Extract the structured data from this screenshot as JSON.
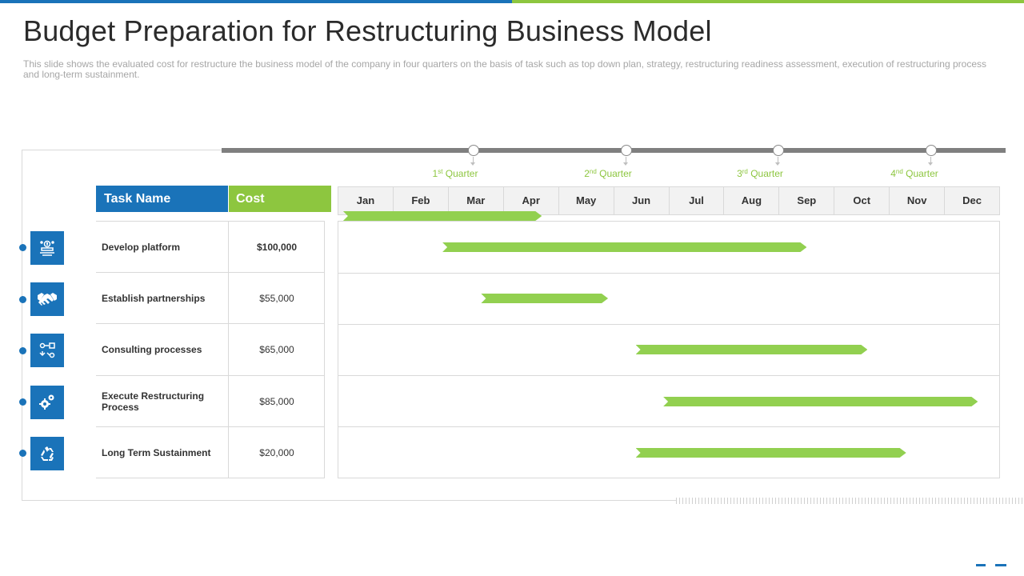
{
  "title": "Budget Preparation for Restructuring Business Model",
  "subtitle": "This slide shows the evaluated cost for restructure the business model of the company in four quarters on the basis of task such as top down plan, strategy, restructuring readiness assessment, execution of restructuring process and long-term sustainment.",
  "quarters": [
    {
      "num": "1",
      "sup": "st",
      "label": " Quarter"
    },
    {
      "num": "2",
      "sup": "nd",
      "label": " Quarter"
    },
    {
      "num": "3",
      "sup": "rd",
      "label": " Quarter"
    },
    {
      "num": "4",
      "sup": "nd",
      "label": " Quarter"
    }
  ],
  "table": {
    "header_task": "Task Name",
    "header_cost": "Cost",
    "rows": [
      {
        "task": "Develop platform",
        "cost": "$100,000",
        "icon": "platform-icon"
      },
      {
        "task": "Establish partnerships",
        "cost": "$55,000",
        "icon": "handshake-icon"
      },
      {
        "task": "Consulting processes",
        "cost": "$65,000",
        "icon": "process-icon"
      },
      {
        "task": "Execute Restructuring Process",
        "cost": "$85,000",
        "icon": "gears-icon"
      },
      {
        "task": "Long Term Sustainment",
        "cost": "$20,000",
        "icon": "recycle-icon"
      }
    ]
  },
  "months": [
    "Jan",
    "Feb",
    "Mar",
    "Apr",
    "May",
    "Jun",
    "Jul",
    "Aug",
    "Sep",
    "Oct",
    "Nov",
    "Dec"
  ],
  "gantt": {
    "header_bar": {
      "start": 0.1,
      "end": 3.7
    },
    "tasks": [
      {
        "start": 1.9,
        "end": 8.5
      },
      {
        "start": 2.6,
        "end": 4.9
      },
      {
        "start": 5.4,
        "end": 9.6
      },
      {
        "start": 5.9,
        "end": 11.6
      },
      {
        "start": 5.4,
        "end": 10.3
      }
    ]
  },
  "colors": {
    "blue": "#1a73b9",
    "green": "#8dc63f",
    "bar": "#92d050"
  }
}
